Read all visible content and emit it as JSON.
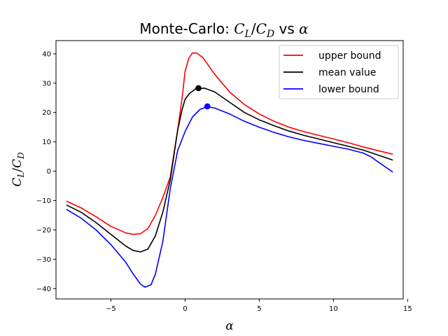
{
  "chart_data": {
    "type": "line",
    "title": {
      "prefix": "Monte-Carlo: ",
      "var1": "C",
      "sub1": "L",
      "slash": "/",
      "var2": "C",
      "sub2": "D",
      "middle": " vs ",
      "greek": "α"
    },
    "xlabel": "α",
    "ylabel": {
      "var1": "C",
      "sub1": "L",
      "slash": "/",
      "var2": "C",
      "sub2": "D"
    },
    "xlim": [
      -8.7,
      14.7
    ],
    "ylim": [
      -43.5,
      44.5
    ],
    "xticks": [
      -5,
      0,
      5,
      10,
      15
    ],
    "yticks": [
      -40,
      -30,
      -20,
      -10,
      0,
      10,
      20,
      30,
      40
    ],
    "grid": false,
    "legend_position": "top-right",
    "series": [
      {
        "name": "upper bound",
        "color": "#ff0000",
        "points": [
          [
            -8,
            -10.2
          ],
          [
            -7,
            -12.5
          ],
          [
            -6,
            -15.5
          ],
          [
            -5,
            -18.8
          ],
          [
            -4,
            -21
          ],
          [
            -3.5,
            -21.5
          ],
          [
            -3,
            -21.3
          ],
          [
            -2.5,
            -19.5
          ],
          [
            -2,
            -15
          ],
          [
            -1.5,
            -9
          ],
          [
            -1,
            -2
          ],
          [
            -0.5,
            14
          ],
          [
            -0.2,
            25
          ],
          [
            0,
            34
          ],
          [
            0.25,
            38.5
          ],
          [
            0.5,
            40.3
          ],
          [
            0.8,
            40.2
          ],
          [
            1.2,
            38.7
          ],
          [
            2,
            33
          ],
          [
            3,
            27
          ],
          [
            4,
            22.7
          ],
          [
            5,
            19.5
          ],
          [
            6,
            17
          ],
          [
            7,
            15
          ],
          [
            8,
            13.5
          ],
          [
            9,
            12.2
          ],
          [
            10,
            11
          ],
          [
            11,
            9.7
          ],
          [
            12,
            8.3
          ],
          [
            13,
            7
          ],
          [
            14,
            5.8
          ]
        ]
      },
      {
        "name": "mean value",
        "color": "#000000",
        "points": [
          [
            -8,
            -11.5
          ],
          [
            -7,
            -14
          ],
          [
            -6,
            -17.5
          ],
          [
            -5,
            -21.5
          ],
          [
            -4,
            -25.5
          ],
          [
            -3.5,
            -27
          ],
          [
            -3,
            -27.5
          ],
          [
            -2.5,
            -26.5
          ],
          [
            -2,
            -22
          ],
          [
            -1.5,
            -14
          ],
          [
            -1,
            -3
          ],
          [
            -0.5,
            14
          ],
          [
            -0.2,
            21
          ],
          [
            0,
            24.5
          ],
          [
            0.3,
            26.5
          ],
          [
            0.7,
            28
          ],
          [
            1.3,
            28.3
          ],
          [
            2,
            27
          ],
          [
            3,
            23.5
          ],
          [
            4,
            20
          ],
          [
            5,
            17.5
          ],
          [
            6,
            15.5
          ],
          [
            7,
            13.7
          ],
          [
            8,
            12.2
          ],
          [
            9,
            11
          ],
          [
            10,
            9.7
          ],
          [
            11,
            8.5
          ],
          [
            12,
            7.2
          ],
          [
            13,
            5.5
          ],
          [
            14,
            3.8
          ]
        ]
      },
      {
        "name": "lower bound",
        "color": "#0000ff",
        "points": [
          [
            -8,
            -13
          ],
          [
            -7,
            -16
          ],
          [
            -6,
            -20
          ],
          [
            -5,
            -25
          ],
          [
            -4,
            -31
          ],
          [
            -3.5,
            -35
          ],
          [
            -3,
            -38.5
          ],
          [
            -2.7,
            -39.5
          ],
          [
            -2.3,
            -38.7
          ],
          [
            -2,
            -35
          ],
          [
            -1.5,
            -24
          ],
          [
            -1,
            -6
          ],
          [
            -0.5,
            7
          ],
          [
            0,
            13.5
          ],
          [
            0.5,
            18.5
          ],
          [
            1,
            21
          ],
          [
            1.5,
            22
          ],
          [
            2,
            21.5
          ],
          [
            3,
            19.5
          ],
          [
            4,
            17
          ],
          [
            5,
            15
          ],
          [
            6,
            13.2
          ],
          [
            7,
            11.7
          ],
          [
            8,
            10.5
          ],
          [
            9,
            9.5
          ],
          [
            10,
            8.5
          ],
          [
            11,
            7.5
          ],
          [
            12,
            6.2
          ],
          [
            12.5,
            5
          ],
          [
            13,
            3.2
          ],
          [
            14,
            -0.3
          ]
        ]
      }
    ],
    "markers": [
      {
        "series": "mean value",
        "x": 0.9,
        "y": 28.3,
        "color": "#000000"
      },
      {
        "series": "lower bound",
        "x": 1.5,
        "y": 22.1,
        "color": "#0000ff"
      }
    ]
  }
}
